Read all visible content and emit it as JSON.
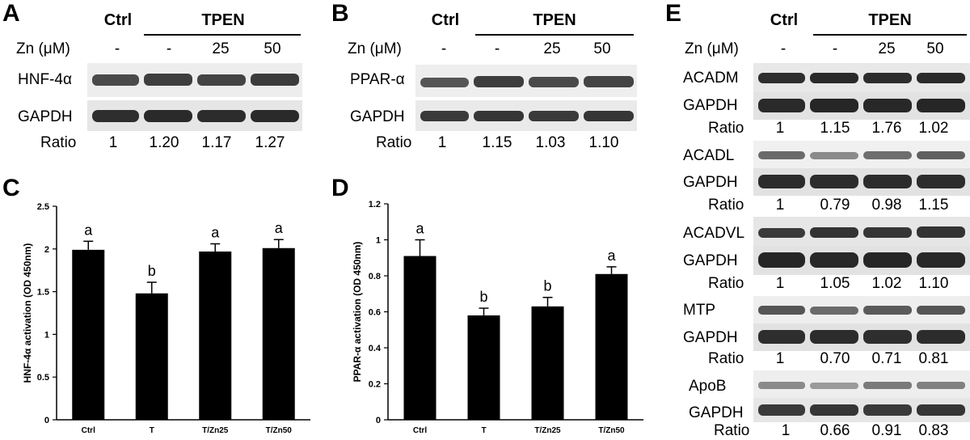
{
  "panels": {
    "A": {
      "letter": "A",
      "ctrl": "Ctrl",
      "tpen": "TPEN",
      "zn_label": "Zn (μM)",
      "zn_values": [
        "-",
        "-",
        "25",
        "50"
      ],
      "blots": [
        "HNF-4α",
        "GAPDH"
      ],
      "ratio_label": "Ratio",
      "ratios": [
        "1",
        "1.20",
        "1.17",
        "1.27"
      ]
    },
    "B": {
      "letter": "B",
      "ctrl": "Ctrl",
      "tpen": "TPEN",
      "zn_label": "Zn (μM)",
      "zn_values": [
        "-",
        "-",
        "25",
        "50"
      ],
      "blots": [
        "PPAR-α",
        "GAPDH"
      ],
      "ratio_label": "Ratio",
      "ratios": [
        "1",
        "1.15",
        "1.03",
        "1.10"
      ]
    },
    "C": {
      "letter": "C"
    },
    "D": {
      "letter": "D"
    },
    "E": {
      "letter": "E",
      "ctrl": "Ctrl",
      "tpen": "TPEN",
      "zn_label": "Zn (μM)",
      "zn_values": [
        "-",
        "-",
        "25",
        "50"
      ],
      "groups": [
        {
          "protein": "ACADM",
          "loading": "GAPDH",
          "ratio_label": "Ratio",
          "ratios": [
            "1",
            "1.15",
            "1.76",
            "1.02"
          ]
        },
        {
          "protein": "ACADL",
          "loading": "GAPDH",
          "ratio_label": "Ratio",
          "ratios": [
            "1",
            "0.79",
            "0.98",
            "1.15"
          ]
        },
        {
          "protein": "ACADVL",
          "loading": "GAPDH",
          "ratio_label": "Ratio",
          "ratios": [
            "1",
            "1.05",
            "1.02",
            "1.10"
          ]
        },
        {
          "protein": "MTP",
          "loading": "GAPDH",
          "ratio_label": "Ratio",
          "ratios": [
            "1",
            "0.70",
            "0.71",
            "0.81"
          ]
        },
        {
          "protein": "ApoB",
          "loading": "GAPDH",
          "ratio_label": "Ratio",
          "ratios": [
            "1",
            "0.66",
            "0.91",
            "0.83"
          ]
        }
      ]
    }
  },
  "chart_data": [
    {
      "type": "bar",
      "panel": "C",
      "title": "",
      "xlabel": "",
      "ylabel": "HNF-4α activation (OD 450nm)",
      "categories": [
        "Ctrl",
        "T",
        "T/Zn25",
        "T/Zn50"
      ],
      "values": [
        1.99,
        1.48,
        1.97,
        2.01
      ],
      "errors": [
        0.1,
        0.13,
        0.09,
        0.1
      ],
      "letters": [
        "a",
        "b",
        "a",
        "a"
      ],
      "ylim": [
        0,
        2.5
      ],
      "yticks": [
        "0",
        "0.5",
        "1",
        "1.5",
        "2",
        "2.5"
      ],
      "ytick_values": [
        0,
        0.5,
        1,
        1.5,
        2,
        2.5
      ],
      "bar_color": "#000000"
    },
    {
      "type": "bar",
      "panel": "D",
      "title": "",
      "xlabel": "",
      "ylabel": "PPAR-α activation (OD 450nm)",
      "categories": [
        "Ctrl",
        "T",
        "T/Zn25",
        "T/Zn50"
      ],
      "values": [
        0.91,
        0.58,
        0.63,
        0.81
      ],
      "errors": [
        0.09,
        0.04,
        0.05,
        0.04
      ],
      "letters": [
        "a",
        "b",
        "b",
        "a"
      ],
      "ylim": [
        0,
        1.2
      ],
      "yticks": [
        "0",
        "0.2",
        "0.4",
        "0.6",
        "0.8",
        "1",
        "1.2"
      ],
      "ytick_values": [
        0,
        0.2,
        0.4,
        0.6,
        0.8,
        1.0,
        1.2
      ],
      "bar_color": "#000000"
    }
  ]
}
